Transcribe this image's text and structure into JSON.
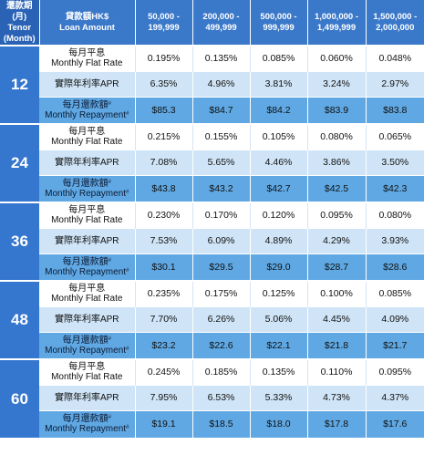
{
  "header": {
    "tenor_zh": "還款期 (月)",
    "tenor_en": "Tenor (Month)",
    "amount_zh": "貸款額HK$",
    "amount_en": "Loan Amount",
    "ranges": [
      "50,000 - 199,999",
      "200,000 - 499,999",
      "500,000 - 999,999",
      "1,000,000 - 1,499,999",
      "1,500,000 - 2,000,000"
    ]
  },
  "row_labels": {
    "flat_zh": "每月平息",
    "flat_en": "Monthly Flat Rate",
    "apr": "實際年利率APR",
    "repay_zh": "每月還款額",
    "repay_en": "Monthly Repayment",
    "repay_mark": "#"
  },
  "tenors": [
    {
      "months": "12",
      "flat": [
        "0.195%",
        "0.135%",
        "0.085%",
        "0.060%",
        "0.048%"
      ],
      "apr": [
        "6.35%",
        "4.96%",
        "3.81%",
        "3.24%",
        "2.97%"
      ],
      "repay": [
        "$85.3",
        "$84.7",
        "$84.2",
        "$83.9",
        "$83.8"
      ]
    },
    {
      "months": "24",
      "flat": [
        "0.215%",
        "0.155%",
        "0.105%",
        "0.080%",
        "0.065%"
      ],
      "apr": [
        "7.08%",
        "5.65%",
        "4.46%",
        "3.86%",
        "3.50%"
      ],
      "repay": [
        "$43.8",
        "$43.2",
        "$42.7",
        "$42.5",
        "$42.3"
      ]
    },
    {
      "months": "36",
      "flat": [
        "0.230%",
        "0.170%",
        "0.120%",
        "0.095%",
        "0.080%"
      ],
      "apr": [
        "7.53%",
        "6.09%",
        "4.89%",
        "4.29%",
        "3.93%"
      ],
      "repay": [
        "$30.1",
        "$29.5",
        "$29.0",
        "$28.7",
        "$28.6"
      ]
    },
    {
      "months": "48",
      "flat": [
        "0.235%",
        "0.175%",
        "0.125%",
        "0.100%",
        "0.085%"
      ],
      "apr": [
        "7.70%",
        "6.26%",
        "5.06%",
        "4.45%",
        "4.09%"
      ],
      "repay": [
        "$23.2",
        "$22.6",
        "$22.1",
        "$21.8",
        "$21.7"
      ]
    },
    {
      "months": "60",
      "flat": [
        "0.245%",
        "0.185%",
        "0.135%",
        "0.110%",
        "0.095%"
      ],
      "apr": [
        "7.95%",
        "6.53%",
        "5.33%",
        "4.73%",
        "4.37%"
      ],
      "repay": [
        "$19.1",
        "$18.5",
        "$18.0",
        "$17.8",
        "$17.6"
      ]
    }
  ]
}
